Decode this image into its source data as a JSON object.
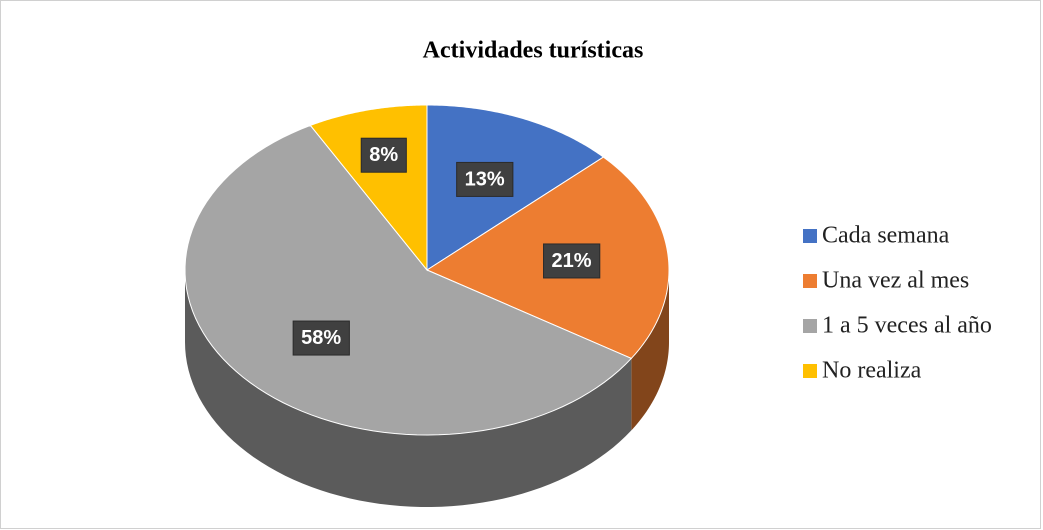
{
  "chart_data": {
    "type": "pie",
    "title": "Actividades turísticas",
    "categories": [
      "Cada semana",
      "Una vez al mes",
      "1 a 5 veces al año",
      "No realiza"
    ],
    "values": [
      13,
      21,
      58,
      8
    ],
    "value_labels": [
      "13%",
      "21%",
      "58%",
      "8%"
    ],
    "colors": [
      "#4472c4",
      "#ed7d31",
      "#a5a5a5",
      "#ffc000"
    ],
    "legend": "right"
  }
}
